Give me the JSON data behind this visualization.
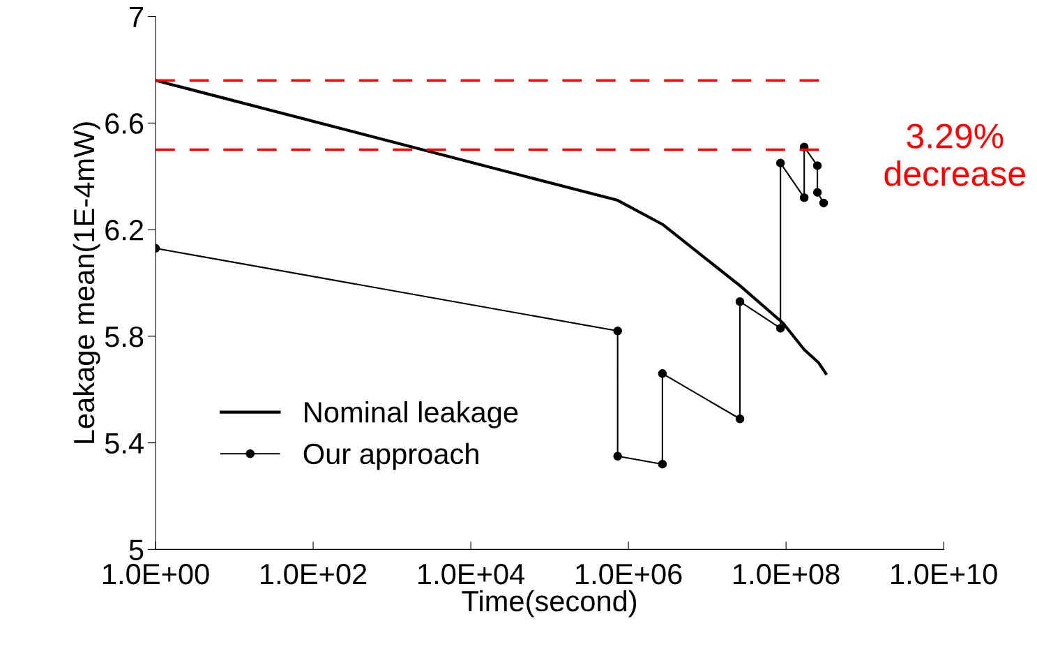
{
  "chart_data": {
    "type": "line",
    "xlabel": "Time(second)",
    "ylabel": "Leakage mean(1E-4mW)",
    "log": "x",
    "grid": false,
    "legend": "bottom left",
    "xlim": [
      1,
      10000000000
    ],
    "xticks": [
      {
        "value": 1,
        "label": "1.0E+00"
      },
      {
        "value": 100,
        "label": "1.0E+02"
      },
      {
        "value": 10000,
        "label": "1.0E+04"
      },
      {
        "value": 1000000,
        "label": "1.0E+06"
      },
      {
        "value": 100000000,
        "label": "1.0E+08"
      },
      {
        "value": 10000000000,
        "label": "1.0E+10"
      }
    ],
    "ylim": [
      5,
      7
    ],
    "yticks": [
      5,
      5.4,
      5.8,
      6.2,
      6.6,
      7
    ],
    "series": [
      {
        "name": "Nominal leakage",
        "color": "#000000",
        "marker": "none",
        "x": [
          1,
          730000,
          2700000,
          26000000,
          91000000,
          170000000,
          260000000,
          320000000
        ],
        "values": [
          6.76,
          6.31,
          6.22,
          5.99,
          5.85,
          5.75,
          5.7,
          5.66
        ]
      },
      {
        "name": "Our approach",
        "color": "#000000",
        "marker": "circle",
        "x": [
          1,
          730000,
          730000,
          2700000,
          2700000,
          26000000,
          26000000,
          85000000,
          85000000,
          170000000,
          170000000,
          250000000,
          250000000,
          300000000
        ],
        "values": [
          6.13,
          5.82,
          5.35,
          5.32,
          5.66,
          5.49,
          5.93,
          5.83,
          6.45,
          6.32,
          6.51,
          6.44,
          6.34,
          6.3
        ]
      }
    ],
    "ref_lines": [
      {
        "axis": "y",
        "value": 6.76,
        "color": "#ff0000",
        "line_style": "dashed"
      },
      {
        "axis": "y",
        "value": 6.5,
        "color": "#ff0000",
        "line_style": "dashed"
      }
    ],
    "annotations": [
      "3.29%\ndecrease"
    ]
  }
}
